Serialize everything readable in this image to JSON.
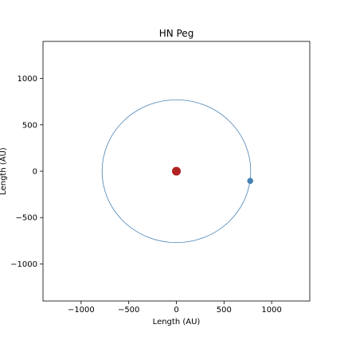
{
  "chart_data": {
    "type": "scatter",
    "title": "HN Peg",
    "xlabel": "Length (AU)",
    "ylabel": "Length (AU)",
    "xlim": [
      -1400,
      1400
    ],
    "ylim": [
      -1400,
      1400
    ],
    "xticks": [
      -1000,
      -500,
      0,
      500,
      1000
    ],
    "yticks": [
      -1000,
      -500,
      0,
      500,
      1000
    ],
    "grid": false,
    "orbit": {
      "center": [
        0,
        0
      ],
      "rx": 780,
      "ry": 770,
      "color": "#4682b4"
    },
    "star": {
      "x": 0,
      "y": 0,
      "color": "#b22222"
    },
    "planet": {
      "x": 775,
      "y": -105,
      "color": "#4682b4"
    }
  }
}
